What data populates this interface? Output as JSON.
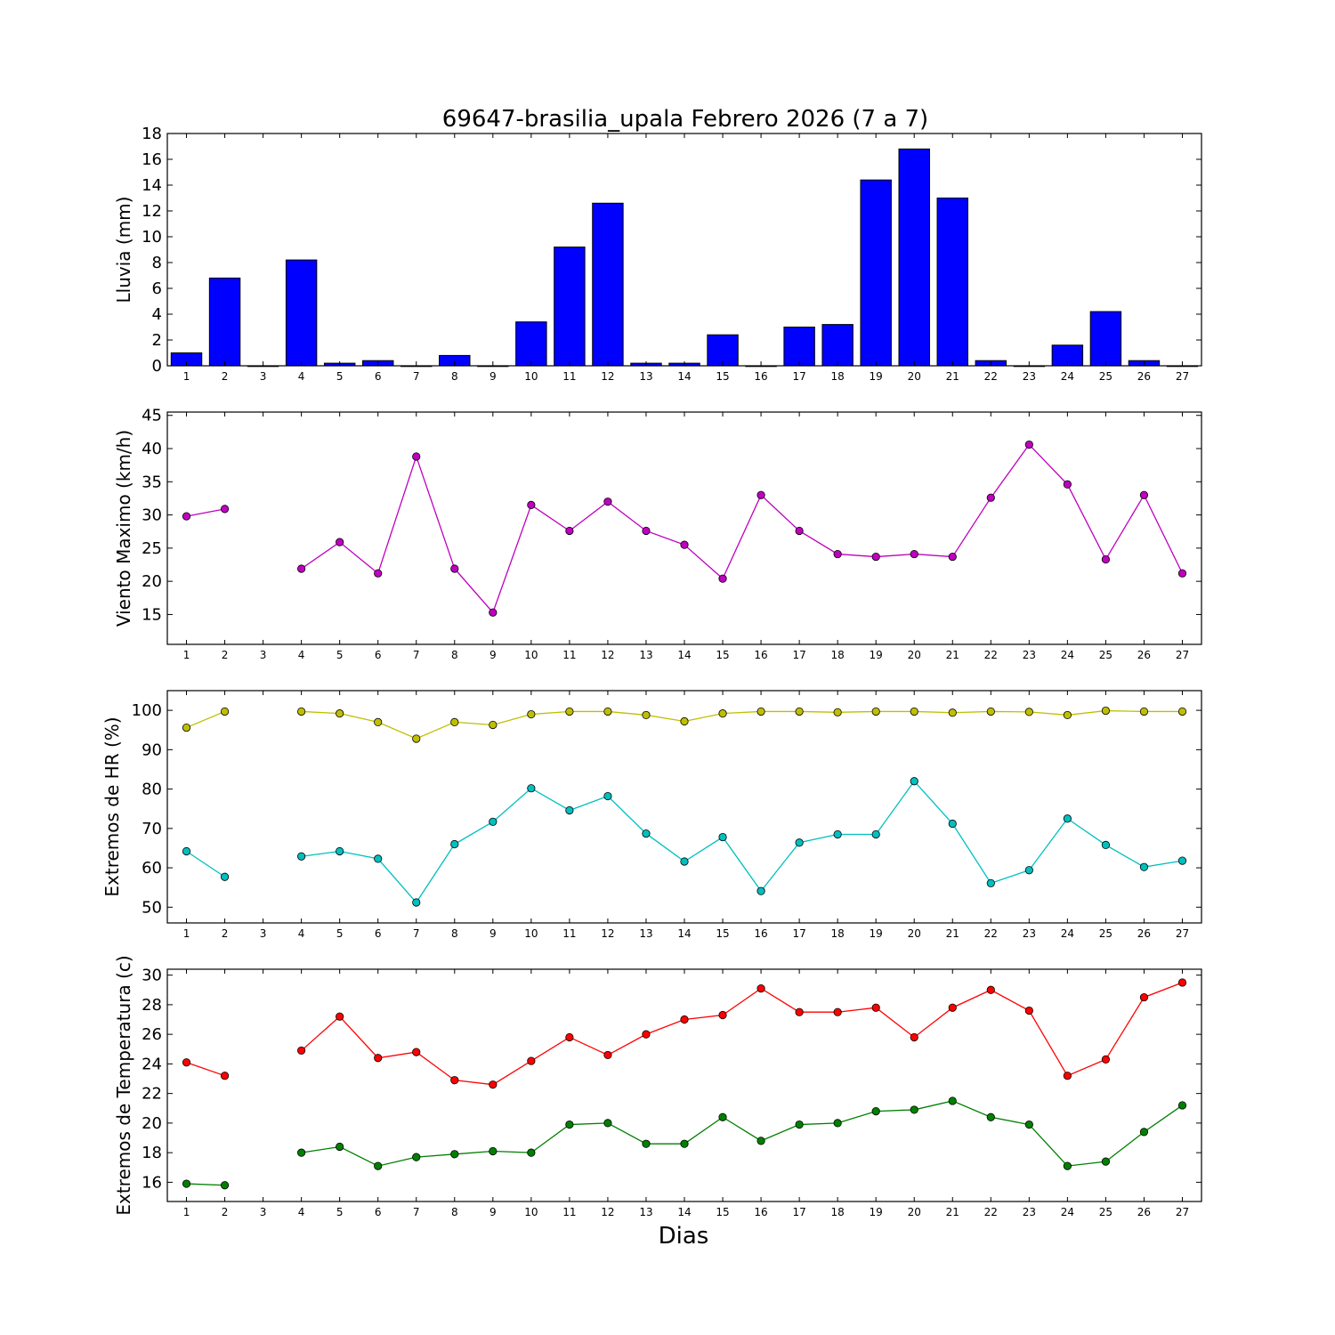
{
  "figure": {
    "title": "69647-brasilia_upala Febrero 2026  (7 a 7)",
    "xlabel": "Dias"
  },
  "chart_data": [
    {
      "type": "bar",
      "ylabel": "Lluvia (mm)",
      "ylim": [
        0,
        18
      ],
      "yticks": [
        0,
        2,
        4,
        6,
        8,
        10,
        12,
        14,
        16,
        18
      ],
      "x": [
        1,
        2,
        3,
        4,
        5,
        6,
        7,
        8,
        9,
        10,
        11,
        12,
        13,
        14,
        15,
        16,
        17,
        18,
        19,
        20,
        21,
        22,
        23,
        24,
        25,
        26,
        27
      ],
      "series": [
        {
          "color": "#0000ff",
          "values": [
            1.0,
            6.8,
            0,
            8.2,
            0.2,
            0.4,
            0,
            0.8,
            0,
            3.4,
            9.2,
            12.6,
            0.2,
            0.2,
            2.4,
            0,
            3.0,
            3.2,
            14.4,
            16.8,
            13.0,
            0.4,
            0,
            1.6,
            4.2,
            0.4,
            0
          ]
        }
      ]
    },
    {
      "type": "line",
      "ylabel": "Viento Maximo (km/h)",
      "ylim": [
        10.5,
        45.5
      ],
      "yticks": [
        15,
        20,
        25,
        30,
        35,
        40,
        45
      ],
      "x": [
        1,
        2,
        3,
        4,
        5,
        6,
        7,
        8,
        9,
        10,
        11,
        12,
        13,
        14,
        15,
        16,
        17,
        18,
        19,
        20,
        21,
        22,
        23,
        24,
        25,
        26,
        27
      ],
      "series": [
        {
          "color": "#bf00bf",
          "values": [
            29.8,
            30.9,
            null,
            21.9,
            25.9,
            21.2,
            38.8,
            21.9,
            15.3,
            31.5,
            27.6,
            32.0,
            27.6,
            25.5,
            20.4,
            33.0,
            27.6,
            24.1,
            23.7,
            24.1,
            23.7,
            32.6,
            40.6,
            34.6,
            23.3,
            33.0,
            21.2
          ]
        }
      ]
    },
    {
      "type": "line",
      "ylabel": "Extremos de HR (%)",
      "ylim": [
        46,
        105
      ],
      "yticks": [
        50,
        60,
        70,
        80,
        90,
        100
      ],
      "x": [
        1,
        2,
        3,
        4,
        5,
        6,
        7,
        8,
        9,
        10,
        11,
        12,
        13,
        14,
        15,
        16,
        17,
        18,
        19,
        20,
        21,
        22,
        23,
        24,
        25,
        26,
        27
      ],
      "series": [
        {
          "color": "#bfbf00",
          "values": [
            95.6,
            99.7,
            null,
            99.7,
            99.2,
            97.0,
            92.8,
            97.0,
            96.3,
            99.0,
            99.7,
            99.7,
            98.8,
            97.2,
            99.2,
            99.7,
            99.7,
            99.5,
            99.7,
            99.7,
            99.4,
            99.7,
            99.6,
            98.8,
            99.9,
            99.7,
            99.7
          ]
        },
        {
          "color": "#00bfbf",
          "values": [
            64.2,
            57.7,
            null,
            62.9,
            64.2,
            62.3,
            51.2,
            66.0,
            71.7,
            80.2,
            74.6,
            78.2,
            68.7,
            61.6,
            67.8,
            54.1,
            66.4,
            68.5,
            68.5,
            82.0,
            71.2,
            56.1,
            59.4,
            72.5,
            65.8,
            60.2,
            61.8
          ]
        }
      ]
    },
    {
      "type": "line",
      "ylabel": "Extremos de Temperatura (c)",
      "ylim": [
        14.7,
        30.4
      ],
      "yticks": [
        16,
        18,
        20,
        22,
        24,
        26,
        28,
        30
      ],
      "x": [
        1,
        2,
        3,
        4,
        5,
        6,
        7,
        8,
        9,
        10,
        11,
        12,
        13,
        14,
        15,
        16,
        17,
        18,
        19,
        20,
        21,
        22,
        23,
        24,
        25,
        26,
        27
      ],
      "series": [
        {
          "color": "#ff0000",
          "values": [
            24.1,
            23.2,
            null,
            24.9,
            27.2,
            24.4,
            24.8,
            22.9,
            22.6,
            24.2,
            25.8,
            24.6,
            26.0,
            27.0,
            27.3,
            29.1,
            27.5,
            27.5,
            27.8,
            25.8,
            27.8,
            29.0,
            27.6,
            23.2,
            24.3,
            28.5,
            29.5
          ]
        },
        {
          "color": "#008000",
          "values": [
            15.9,
            15.8,
            null,
            18.0,
            18.4,
            17.1,
            17.7,
            17.9,
            18.1,
            18.0,
            19.9,
            20.0,
            18.6,
            18.6,
            20.4,
            18.8,
            19.9,
            20.0,
            20.8,
            20.9,
            21.5,
            20.4,
            19.9,
            17.1,
            17.4,
            19.4,
            21.2
          ]
        }
      ]
    }
  ]
}
